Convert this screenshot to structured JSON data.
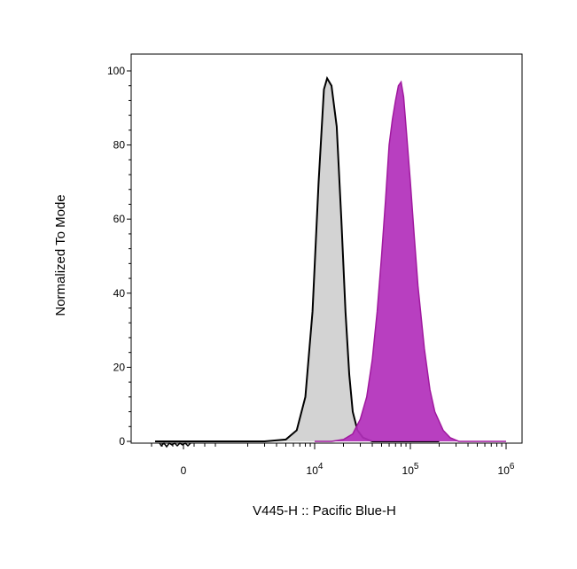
{
  "chart_data": {
    "type": "area",
    "xlabel": "V445-H :: Pacific Blue-H",
    "ylabel": "Normalized To Mode",
    "x_scale": "biexponential",
    "y_range": [
      0,
      100
    ],
    "y_ticks": [
      0,
      20,
      40,
      60,
      80,
      100
    ],
    "x_ticks": [
      {
        "value": 0,
        "base": "0",
        "exp": ""
      },
      {
        "value": 10000,
        "base": "10",
        "exp": "4"
      },
      {
        "value": 100000,
        "base": "10",
        "exp": "5"
      },
      {
        "value": 1000000,
        "base": "10",
        "exp": "6"
      }
    ],
    "grid": false,
    "series": [
      {
        "fill_color": "#d3d3d3",
        "line_color": "#000000",
        "x": [
          -800,
          0,
          3000,
          5000,
          6500,
          8000,
          9500,
          11000,
          12500,
          13500,
          15000,
          17000,
          19000,
          21000,
          23000,
          25000,
          28000,
          32000,
          40000,
          60000,
          200000
        ],
        "y": [
          0,
          0,
          0,
          0.5,
          3,
          12,
          35,
          70,
          95,
          98,
          96,
          85,
          60,
          35,
          18,
          8,
          3,
          1,
          0,
          0,
          0
        ]
      },
      {
        "fill_color": "#b22fbb",
        "line_color": "#a0199f",
        "x": [
          10000,
          15000,
          20000,
          25000,
          30000,
          35000,
          40000,
          45000,
          50000,
          55000,
          60000,
          65000,
          70000,
          75000,
          80000,
          85000,
          90000,
          100000,
          110000,
          120000,
          140000,
          160000,
          180000,
          220000,
          260000,
          320000,
          1000000
        ],
        "y": [
          0,
          0,
          0.5,
          2,
          6,
          12,
          22,
          35,
          50,
          65,
          80,
          87,
          92,
          96,
          97,
          93,
          85,
          70,
          55,
          42,
          25,
          14,
          8,
          3,
          1,
          0,
          0
        ]
      }
    ]
  }
}
